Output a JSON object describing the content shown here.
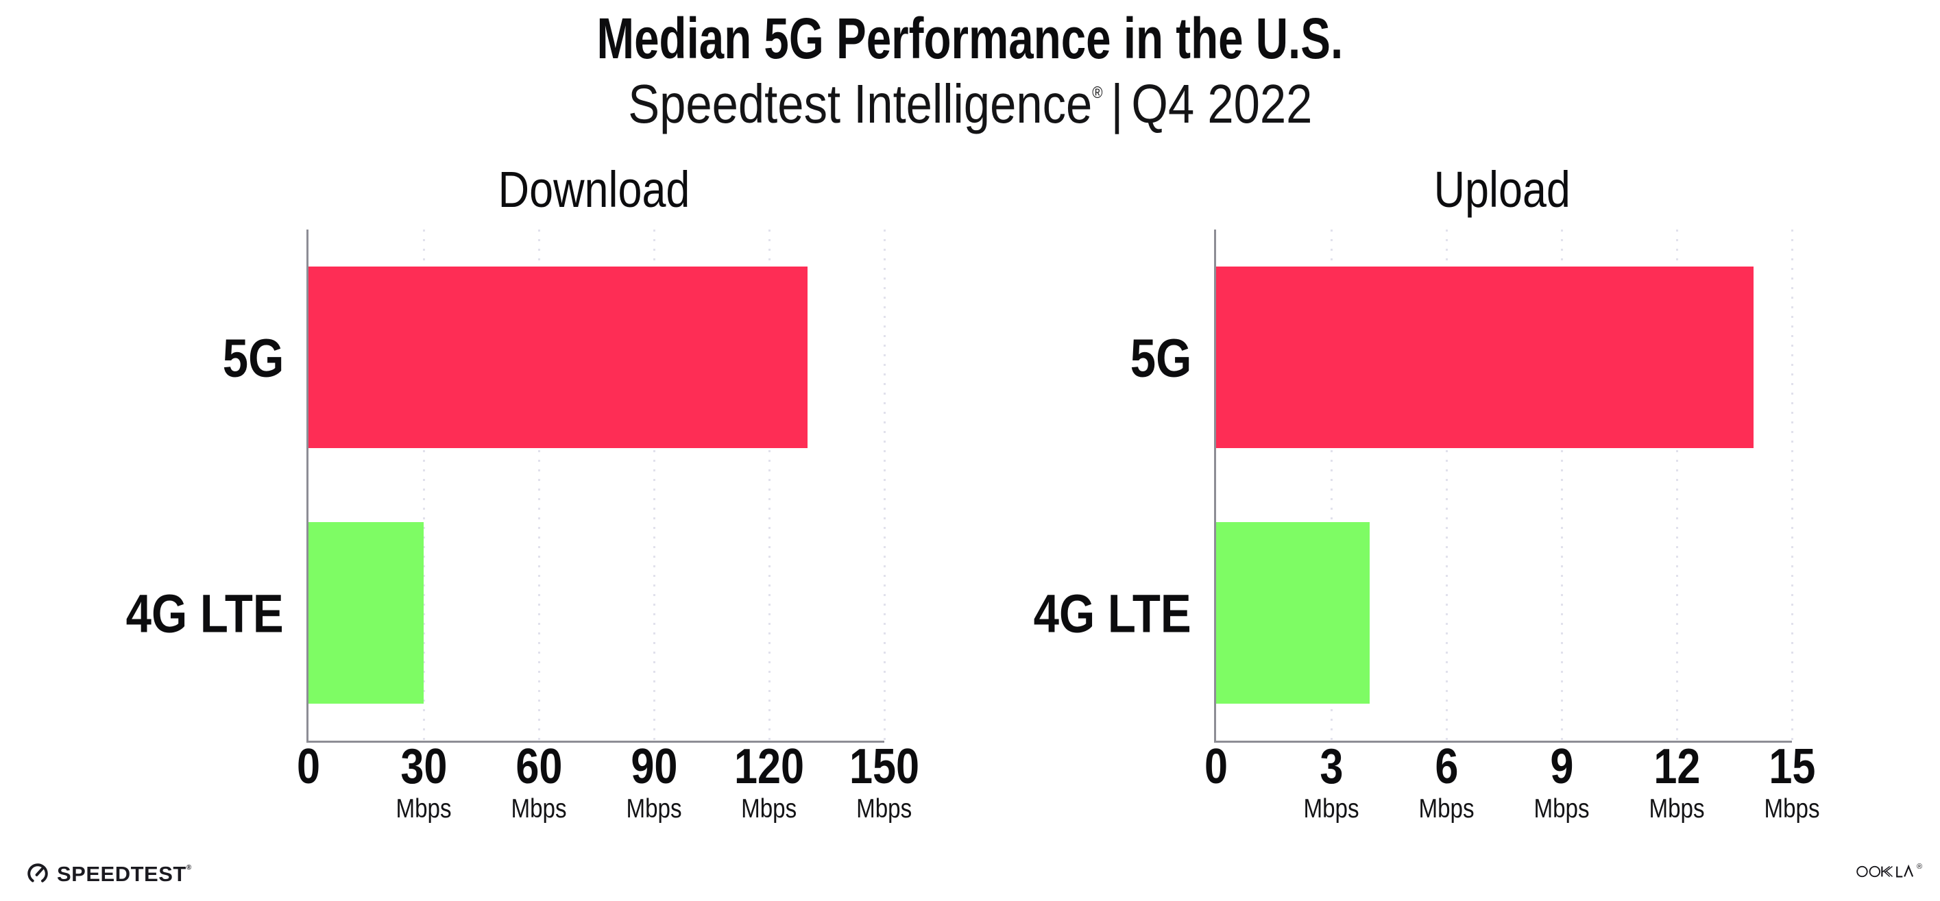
{
  "header": {
    "title": "Median 5G Performance in the U.S.",
    "subtitle_brand": "Speedtest Intelligence",
    "subtitle_reg": "®",
    "subtitle_separator": "|",
    "subtitle_period": "Q4 2022"
  },
  "chart_data": [
    {
      "type": "bar",
      "orientation": "horizontal",
      "title": "Download",
      "categories": [
        "5G",
        "4G LTE"
      ],
      "values": [
        130,
        30
      ],
      "unit": "Mbps",
      "xlim": [
        0,
        150
      ],
      "xticks": [
        0,
        30,
        60,
        90,
        120,
        150
      ],
      "bar_colors": [
        "#FE2D55",
        "#7EFC64"
      ],
      "grid": "vertical-dotted",
      "legend": "none"
    },
    {
      "type": "bar",
      "orientation": "horizontal",
      "title": "Upload",
      "categories": [
        "5G",
        "4G LTE"
      ],
      "values": [
        14,
        4
      ],
      "unit": "Mbps",
      "xlim": [
        0,
        15
      ],
      "xticks": [
        0,
        3,
        6,
        9,
        12,
        15
      ],
      "bar_colors": [
        "#FE2D55",
        "#7EFC64"
      ],
      "grid": "vertical-dotted",
      "legend": "none"
    }
  ],
  "footer": {
    "speedtest_text": "SPEEDTEST",
    "speedtest_mark": "®",
    "ookla_text": "OOKLA",
    "ookla_mark": "®"
  },
  "colors": {
    "bar_5g": "#FE2D55",
    "bar_4g_lte": "#7EFC64",
    "gridline": "#E1E1EC",
    "axis": "#8D8D95",
    "text": "#0C0C0E"
  }
}
